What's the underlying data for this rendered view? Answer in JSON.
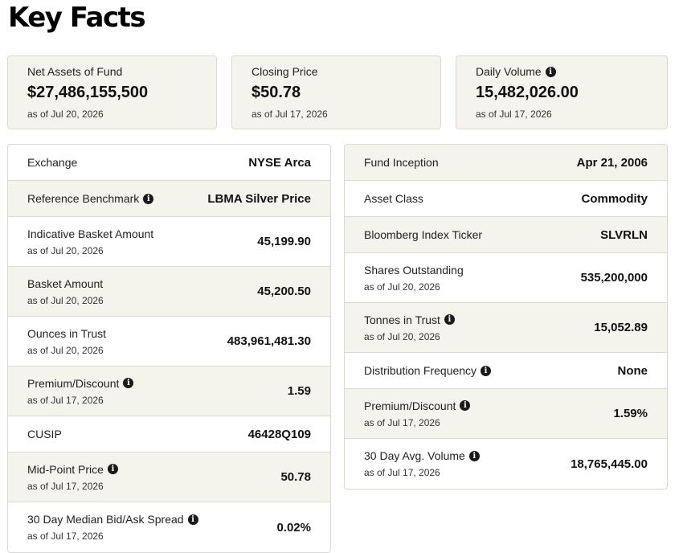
{
  "page": {
    "title": "Key Facts"
  },
  "cards": [
    {
      "label": "Net Assets of Fund",
      "value": "$27,486,155,500",
      "asof": "as of Jul 20, 2026",
      "info": false
    },
    {
      "label": "Closing Price",
      "value": "$50.78",
      "asof": "as of Jul 17, 2026",
      "info": false
    },
    {
      "label": "Daily Volume",
      "value": "15,482,026.00",
      "asof": "as of Jul 17, 2026",
      "info": true
    }
  ],
  "left_table": [
    {
      "label": "Exchange",
      "value": "NYSE Arca",
      "asof": ""
    },
    {
      "label": "Reference Benchmark",
      "value": "LBMA Silver Price",
      "asof": ""
    },
    {
      "label": "Indicative Basket Amount",
      "value": "45,199.90",
      "asof": "as of Jul 20, 2026"
    },
    {
      "label": "Basket Amount",
      "value": "45,200.50",
      "asof": "as of Jul 20, 2026"
    },
    {
      "label": "Ounces in Trust",
      "value": "483,961,481.30",
      "asof": "as of Jul 20, 2026"
    },
    {
      "label": "Premium/Discount",
      "value": "1.59",
      "asof": "as of Jul 17, 2026"
    },
    {
      "label": "CUSIP",
      "value": "46428Q109",
      "asof": ""
    },
    {
      "label": "Mid-Point Price",
      "value": "50.78",
      "asof": "as of Jul 17, 2026"
    },
    {
      "label": "30 Day Median Bid/Ask Spread",
      "value": "0.02%",
      "asof": "as of Jul 17, 2026"
    }
  ],
  "right_table": [
    {
      "label": "Fund Inception",
      "value": "Apr 21, 2006",
      "asof": ""
    },
    {
      "label": "Asset Class",
      "value": "Commodity",
      "asof": ""
    },
    {
      "label": "Bloomberg Index Ticker",
      "value": "SLVRLN",
      "asof": ""
    },
    {
      "label": "Shares Outstanding",
      "value": "535,200,000",
      "asof": "as of Jul 20, 2026"
    },
    {
      "label": "Tonnes in Trust",
      "value": "15,052.89",
      "asof": "as of Jul 20, 2026"
    },
    {
      "label": "Distribution Frequency",
      "value": "None",
      "asof": ""
    },
    {
      "label": "Premium/Discount",
      "value": "1.59%",
      "asof": "as of Jul 17, 2026"
    },
    {
      "label": "30 Day Avg. Volume",
      "value": "18,765,445.00",
      "asof": "as of Jul 17, 2026"
    }
  ],
  "icons": {
    "info": "info-icon",
    "info_glyph": "i"
  },
  "colors": {
    "card_bg": "#f4f3ec",
    "border": "#dcdad0",
    "text": "#1a1a1a"
  }
}
